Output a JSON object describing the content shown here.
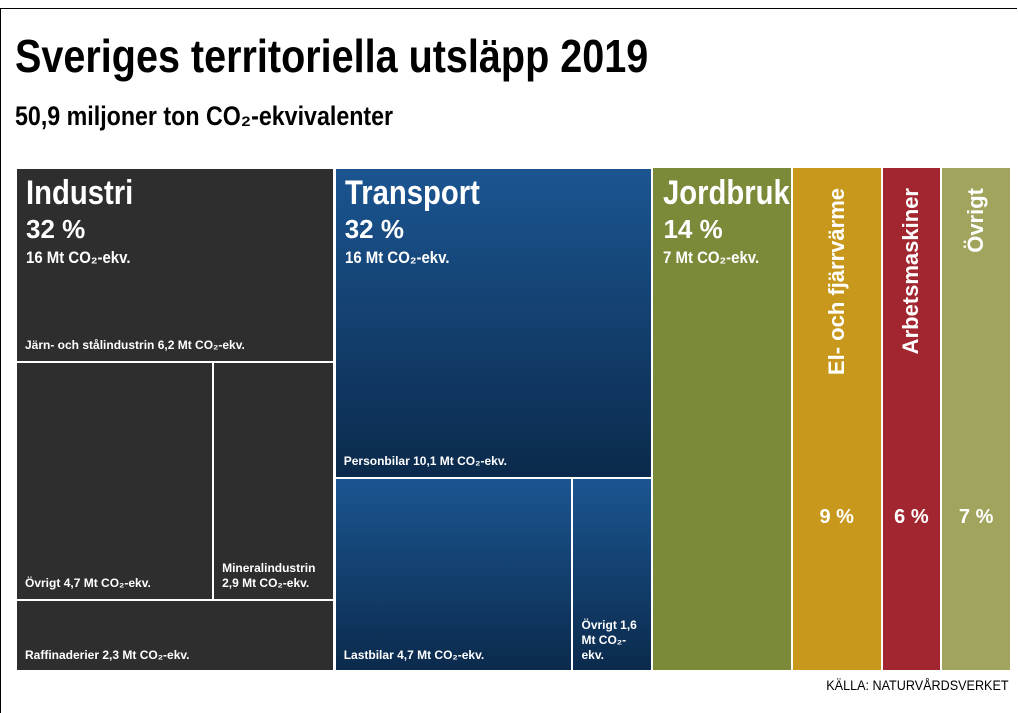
{
  "chart_data": {
    "type": "treemap",
    "title": "Sveriges territoriella utsläpp 2019",
    "subtitle": "50,9 miljoner ton CO₂-ekvivalenter",
    "source": "KÄLLA: NATURVÅRDSVERKET",
    "items": [
      {
        "name": "Industri",
        "percent": 32,
        "percent_label": "32 %",
        "amount": 16,
        "amount_label": "16 Mt CO₂-ekv.",
        "color": "#2e2e2e",
        "children": [
          {
            "name": "Järn- och stålindustrin",
            "value": 6.2,
            "value_label": "6,2 Mt CO₂-ekv."
          },
          {
            "name": "Övrigt",
            "value": 4.7,
            "value_label": "4,7 Mt CO₂-ekv."
          },
          {
            "name": "Mineralindustrin",
            "value": 2.9,
            "value_label": "2,9 Mt CO₂-ekv."
          },
          {
            "name": "Raffinaderier",
            "value": 2.3,
            "value_label": "2,3 Mt CO₂-ekv."
          }
        ]
      },
      {
        "name": "Transport",
        "percent": 32,
        "percent_label": "32 %",
        "amount": 16,
        "amount_label": "16 Mt CO₂-ekv.",
        "color": "#134477",
        "children": [
          {
            "name": "Personbilar",
            "value": 10.1,
            "value_label": "10,1 Mt CO₂-ekv."
          },
          {
            "name": "Lastbilar",
            "value": 4.7,
            "value_label": "4,7 Mt CO₂-ekv."
          },
          {
            "name": "Övrigt",
            "value": 1.6,
            "value_label": "1,6 Mt CO₂-ekv."
          }
        ]
      },
      {
        "name": "Jordbruk",
        "percent": 14,
        "percent_label": "14 %",
        "amount": 7,
        "amount_label": "7 Mt CO₂-ekv.",
        "color": "#7b8a38"
      },
      {
        "name": "El- och fjärrvärme",
        "percent": 9,
        "percent_label": "9 %",
        "color": "#c7981c"
      },
      {
        "name": "Arbetsmaskiner",
        "percent": 6,
        "percent_label": "6 %",
        "color": "#a1262f"
      },
      {
        "name": "Övrigt",
        "percent": 7,
        "percent_label": "7 %",
        "color": "#a1a45c"
      }
    ]
  }
}
